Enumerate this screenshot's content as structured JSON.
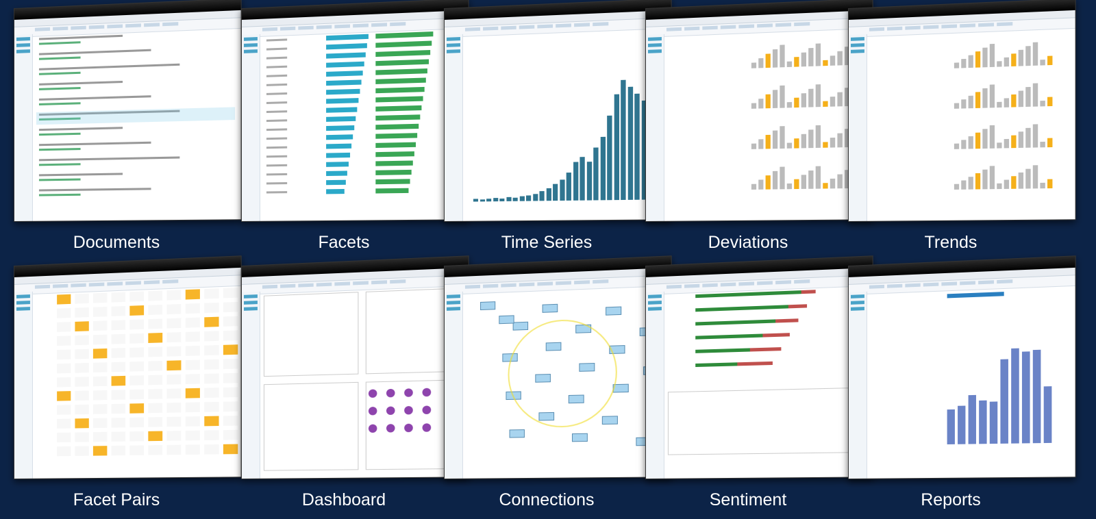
{
  "panels": [
    {
      "label": "Documents"
    },
    {
      "label": "Facets"
    },
    {
      "label": "Time Series"
    },
    {
      "label": "Deviations"
    },
    {
      "label": "Trends"
    },
    {
      "label": "Facet Pairs"
    },
    {
      "label": "Dashboard"
    },
    {
      "label": "Connections"
    },
    {
      "label": "Sentiment"
    },
    {
      "label": "Reports"
    }
  ]
}
